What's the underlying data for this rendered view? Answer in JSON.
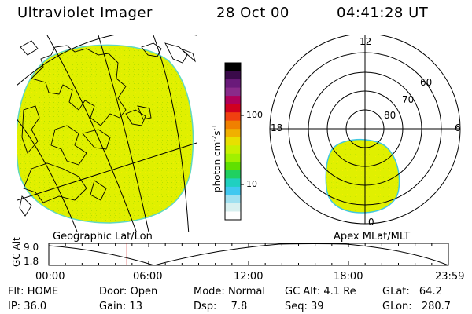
{
  "header": {
    "instrument": "Ultraviolet Imager",
    "date": "28 Oct 00",
    "time": "04:41:28 UT"
  },
  "geo_panel": {
    "label": "Geographic Lat/Lon"
  },
  "polar_panel": {
    "label": "Apex MLat/MLT",
    "mlt_labels": {
      "top": "12",
      "left": "18",
      "right": "6",
      "bottom": "0"
    },
    "lat_labels": [
      "60",
      "70",
      "80"
    ]
  },
  "colorbar": {
    "unit_label": "photon cm",
    "unit_sup1": "-2",
    "unit_mid": "s",
    "unit_sup2": "-1",
    "ticks": [
      "100",
      "10"
    ],
    "colors": [
      "#000000",
      "#3a0a4a",
      "#6a1a7a",
      "#8a2a8a",
      "#b0005a",
      "#d00020",
      "#f04010",
      "#f08000",
      "#f0b000",
      "#e8e000",
      "#c8f000",
      "#a0f000",
      "#60e000",
      "#20d060",
      "#20d0c0",
      "#40c8f0",
      "#a0e0f0",
      "#d8f0f0",
      "#ffffff"
    ]
  },
  "timeline": {
    "axis_label": "GC Alt",
    "y_ticks": [
      "9.0",
      "1.8"
    ],
    "x_ticks": [
      "00:00",
      "06:00",
      "12:00",
      "18:00",
      "23:59"
    ],
    "marker_hour": 4.69
  },
  "info": {
    "flt_label": "Flt:",
    "flt_value": "HOME",
    "ip_label": "IP:",
    "ip_value": "36.0",
    "door_label": "Door:",
    "door_value": "Open",
    "gain_label": "Gain:",
    "gain_value": "13",
    "mode_label": "Mode:",
    "mode_value": "Normal",
    "dsp_label": "Dsp:",
    "dsp_value": "7.8",
    "gcalt_label": "GC Alt:",
    "gcalt_value": "4.1 Re",
    "seq_label": "Seq:",
    "seq_value": "39",
    "glat_label": "GLat:",
    "glat_value": "64.2",
    "glon_label": "GLon:",
    "glon_value": "280.7"
  },
  "colors": {
    "emission_fill": "#e0f000",
    "emission_edge": "#40c8e0",
    "marker": "#d00000"
  }
}
